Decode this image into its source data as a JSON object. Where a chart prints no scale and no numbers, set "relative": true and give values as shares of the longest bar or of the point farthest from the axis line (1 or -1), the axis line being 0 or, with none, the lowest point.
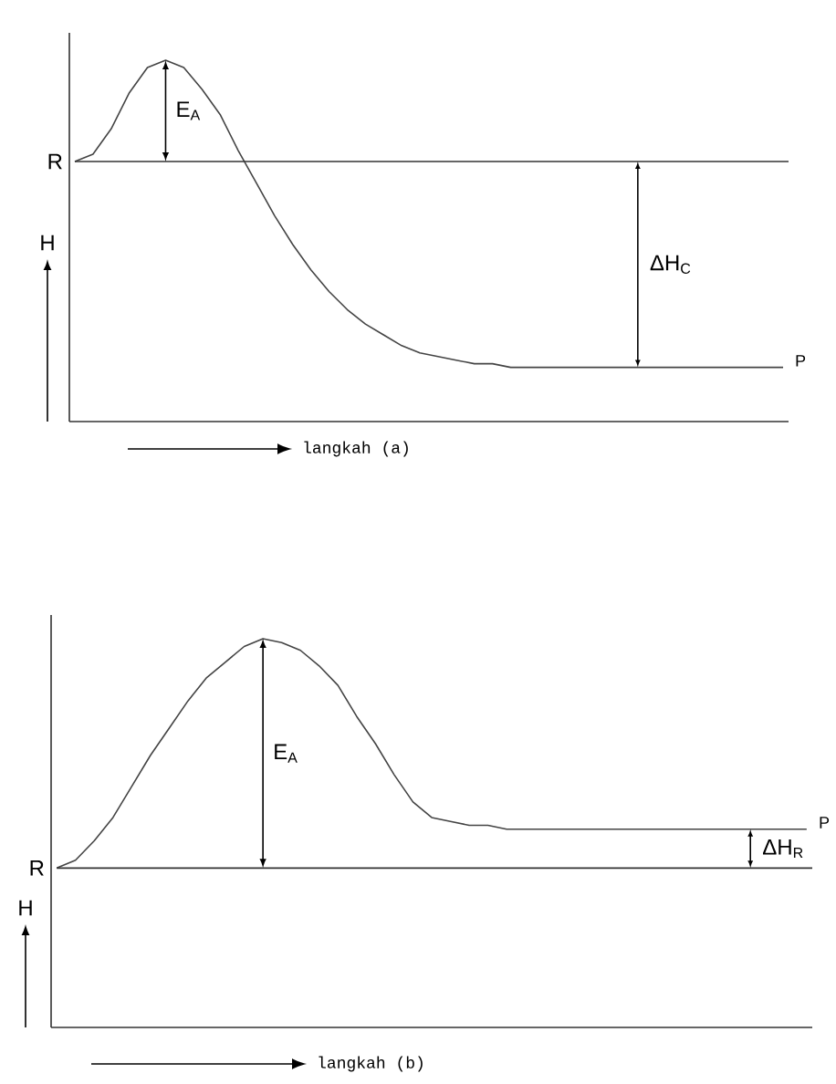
{
  "chart_data": [
    {
      "type": "line",
      "relative": true,
      "color": "#444444",
      "xlabel": "langkah (a)",
      "ylabel": "H",
      "categories": [
        null,
        null,
        null,
        null,
        null,
        null,
        null,
        null,
        null,
        null,
        null,
        null,
        null,
        null,
        null,
        null,
        null,
        null,
        null,
        null,
        null,
        null,
        null,
        null,
        null,
        null,
        null,
        null,
        null,
        null,
        null,
        null,
        null,
        null,
        null,
        null,
        null,
        null,
        null,
        null
      ],
      "values": [
        0.72,
        0.74,
        0.81,
        0.91,
        0.98,
        1.0,
        0.98,
        0.92,
        0.85,
        0.75,
        0.66,
        0.57,
        0.49,
        0.42,
        0.36,
        0.31,
        0.27,
        0.24,
        0.21,
        0.19,
        0.18,
        0.17,
        0.16,
        0.16,
        0.15,
        0.15,
        0.15,
        0.15,
        0.15,
        0.15,
        0.15,
        0.15,
        0.15,
        0.15,
        0.15,
        0.15,
        0.15,
        0.15,
        0.15,
        0.15
      ],
      "ref_lines": [
        {
          "axis": "y",
          "value": 0.72,
          "label": "R"
        }
      ],
      "annotations": [
        "E$_{A}$",
        "ΔH$_{C}$",
        "P"
      ]
    },
    {
      "type": "line",
      "relative": true,
      "color": "#444444",
      "xlabel": "langkah (b)",
      "ylabel": "H",
      "categories": [
        null,
        null,
        null,
        null,
        null,
        null,
        null,
        null,
        null,
        null,
        null,
        null,
        null,
        null,
        null,
        null,
        null,
        null,
        null,
        null,
        null,
        null,
        null,
        null,
        null,
        null,
        null,
        null,
        null,
        null,
        null,
        null,
        null,
        null,
        null,
        null,
        null,
        null,
        null,
        null,
        null
      ],
      "values": [
        0.41,
        0.43,
        0.48,
        0.54,
        0.62,
        0.7,
        0.77,
        0.84,
        0.9,
        0.94,
        0.98,
        1.0,
        0.99,
        0.97,
        0.93,
        0.88,
        0.8,
        0.73,
        0.65,
        0.58,
        0.54,
        0.53,
        0.52,
        0.52,
        0.51,
        0.51,
        0.51,
        0.51,
        0.51,
        0.51,
        0.51,
        0.51,
        0.51,
        0.51,
        0.51,
        0.51,
        0.51,
        0.51,
        0.51,
        0.51,
        0.51
      ],
      "ref_lines": [
        {
          "axis": "y",
          "value": 0.41,
          "label": "R"
        }
      ],
      "annotations": [
        "E$_{A}$",
        "ΔH$_{R}$",
        "P"
      ]
    }
  ]
}
